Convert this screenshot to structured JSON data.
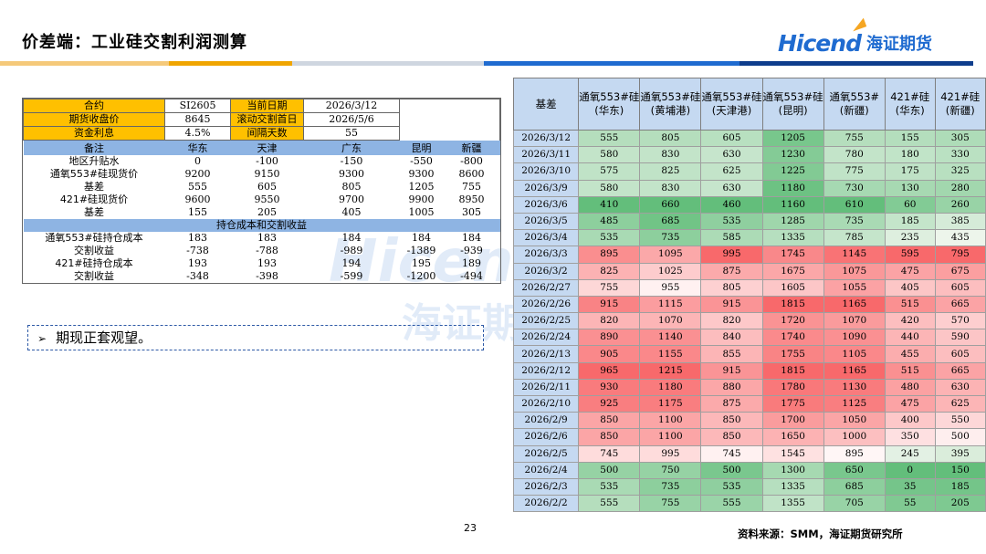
{
  "header": {
    "title": "价差端：工业硅交割利润测算",
    "logo_en": "Hicend",
    "logo_cn": "海证期货",
    "stripe_colors": [
      "#f5c97a",
      "#f0a500",
      "#cfd6e0",
      "#1f6bd0",
      "#0e3d8c"
    ]
  },
  "left_table": {
    "info_rows": [
      [
        "合约",
        "SI2605",
        "当前日期",
        "2026/3/12"
      ],
      [
        "期货收盘价",
        "8645",
        "滚动交割首日",
        "2026/5/6"
      ],
      [
        "资金利息",
        "4.5%",
        "间隔天数",
        "55"
      ]
    ],
    "columns": [
      "备注",
      "华东",
      "天津",
      "广东",
      "昆明",
      "新疆"
    ],
    "rows_a": [
      [
        "地区升贴水",
        "0",
        "-100",
        "-150",
        "-550",
        "-800"
      ],
      [
        "通氧553#硅现货价",
        "9200",
        "9150",
        "9300",
        "9300",
        "8600"
      ],
      [
        "基差",
        "555",
        "605",
        "805",
        "1205",
        "755"
      ],
      [
        "421#硅现货价",
        "9600",
        "9550",
        "9700",
        "9900",
        "8950"
      ],
      [
        "基差",
        "155",
        "205",
        "405",
        "1005",
        "305"
      ]
    ],
    "section_title": "持仓成本和交割收益",
    "rows_b": [
      [
        "通氧553#硅持仓成本",
        "183",
        "183",
        "184",
        "184",
        "184"
      ],
      [
        "交割收益",
        "-738",
        "-788",
        "-989",
        "-1389",
        "-939"
      ],
      [
        "421#硅持仓成本",
        "193",
        "193",
        "194",
        "195",
        "189"
      ],
      [
        "交割收益",
        "-348",
        "-398",
        "-599",
        "-1200",
        "-494"
      ]
    ]
  },
  "note": {
    "arrow": "➢",
    "text": "期现正套观望。"
  },
  "right_table": {
    "header_first": "基差",
    "columns": [
      [
        "通氧553#硅",
        "(华东)"
      ],
      [
        "通氧553#硅",
        "(黄埔港)"
      ],
      [
        "通氧553#硅",
        "(天津港)"
      ],
      [
        "通氧553#硅",
        "(昆明)"
      ],
      [
        "通氧553#",
        "(新疆)"
      ],
      [
        "421#硅",
        "(华东)"
      ],
      [
        "421#硅",
        "(新疆)"
      ]
    ],
    "rows": [
      [
        "2026/3/12",
        555,
        805,
        605,
        1205,
        755,
        155,
        305
      ],
      [
        "2026/3/11",
        580,
        830,
        630,
        1230,
        780,
        180,
        330
      ],
      [
        "2026/3/10",
        575,
        825,
        625,
        1225,
        775,
        175,
        325
      ],
      [
        "2026/3/9",
        580,
        830,
        630,
        1180,
        730,
        130,
        280
      ],
      [
        "2026/3/6",
        410,
        660,
        460,
        1160,
        610,
        60,
        260
      ],
      [
        "2026/3/5",
        485,
        685,
        535,
        1285,
        735,
        185,
        385
      ],
      [
        "2026/3/4",
        535,
        735,
        585,
        1335,
        785,
        235,
        435
      ],
      [
        "2026/3/3",
        895,
        1095,
        995,
        1745,
        1145,
        595,
        795
      ],
      [
        "2026/3/2",
        825,
        1025,
        875,
        1675,
        1075,
        475,
        675
      ],
      [
        "2026/2/27",
        755,
        955,
        805,
        1605,
        1055,
        405,
        605
      ],
      [
        "2026/2/26",
        915,
        1115,
        915,
        1815,
        1165,
        515,
        665
      ],
      [
        "2026/2/25",
        820,
        1070,
        820,
        1720,
        1070,
        420,
        570
      ],
      [
        "2026/2/24",
        890,
        1140,
        840,
        1740,
        1090,
        440,
        590
      ],
      [
        "2026/2/13",
        905,
        1155,
        855,
        1755,
        1105,
        455,
        605
      ],
      [
        "2026/2/12",
        965,
        1215,
        915,
        1815,
        1165,
        515,
        665
      ],
      [
        "2026/2/11",
        930,
        1180,
        880,
        1780,
        1130,
        480,
        630
      ],
      [
        "2026/2/10",
        925,
        1175,
        875,
        1775,
        1125,
        475,
        625
      ],
      [
        "2026/2/9",
        850,
        1100,
        850,
        1700,
        1050,
        400,
        550
      ],
      [
        "2026/2/6",
        850,
        1100,
        850,
        1650,
        1000,
        350,
        500
      ],
      [
        "2026/2/5",
        745,
        995,
        745,
        1545,
        895,
        245,
        395
      ],
      [
        "2026/2/4",
        500,
        750,
        500,
        1300,
        650,
        0,
        150
      ],
      [
        "2026/2/3",
        535,
        735,
        535,
        1335,
        685,
        35,
        185
      ],
      [
        "2026/2/2",
        555,
        755,
        555,
        1355,
        705,
        55,
        205
      ]
    ]
  },
  "watermark": {
    "en": "Hicend",
    "cn": "海证期"
  },
  "footer": {
    "page": "23",
    "source": "资料来源：SMM，海证期货研究所"
  }
}
